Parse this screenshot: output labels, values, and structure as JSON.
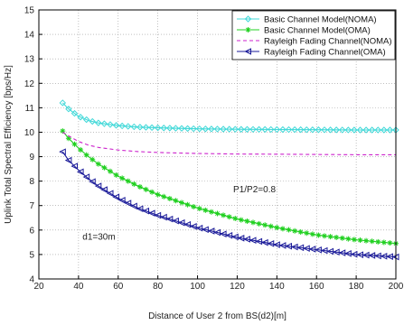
{
  "chart_data": {
    "type": "line",
    "xlabel": "Distance of User 2 from BS(d2)[m]",
    "ylabel": "Uplink Total Spectral Efficiency [bps/Hz]",
    "xlim": [
      20,
      200
    ],
    "ylim": [
      4,
      15
    ],
    "xticks": [
      20,
      40,
      60,
      80,
      100,
      120,
      140,
      160,
      180,
      200
    ],
    "yticks": [
      4,
      5,
      6,
      7,
      8,
      9,
      10,
      11,
      12,
      13,
      14,
      15
    ],
    "grid": true,
    "legend_position": "top-right",
    "annotations": [
      "P1/P2=0.8",
      "d1=30m"
    ],
    "series": [
      {
        "name": "Basic Channel Model(NOMA)",
        "color": "#40d8d8",
        "line_style": "solid",
        "marker": "diamond",
        "x": [
          32,
          35,
          40,
          45,
          50,
          60,
          70,
          80,
          100,
          120,
          140,
          160,
          180,
          200
        ],
        "y": [
          11.2,
          10.95,
          10.65,
          10.48,
          10.38,
          10.27,
          10.21,
          10.18,
          10.14,
          10.12,
          10.11,
          10.1,
          10.09,
          10.09
        ]
      },
      {
        "name": "Basic Channel Model(OMA)",
        "color": "#20d020",
        "line_style": "solid",
        "marker": "star",
        "x": [
          32,
          35,
          40,
          45,
          50,
          60,
          70,
          80,
          100,
          120,
          140,
          160,
          180,
          200
        ],
        "y": [
          10.05,
          9.75,
          9.35,
          9.0,
          8.7,
          8.2,
          7.8,
          7.45,
          6.9,
          6.45,
          6.1,
          5.8,
          5.6,
          5.45
        ]
      },
      {
        "name": "Rayleigh Fading Channel(NOMA)",
        "color": "#cc22cc",
        "line_style": "dashed",
        "marker": "none",
        "x": [
          32,
          35,
          40,
          45,
          50,
          60,
          70,
          80,
          100,
          120,
          140,
          160,
          180,
          200
        ],
        "y": [
          10.0,
          9.85,
          9.62,
          9.47,
          9.38,
          9.27,
          9.21,
          9.17,
          9.13,
          9.11,
          9.1,
          9.09,
          9.08,
          9.08
        ]
      },
      {
        "name": "Rayleigh Fading Channel(OMA)",
        "color": "#1a1a99",
        "line_style": "solid",
        "marker": "triangle-left",
        "x": [
          32,
          35,
          40,
          45,
          50,
          60,
          70,
          80,
          100,
          120,
          140,
          160,
          180,
          200
        ],
        "y": [
          9.2,
          8.85,
          8.45,
          8.1,
          7.8,
          7.3,
          6.9,
          6.6,
          6.1,
          5.7,
          5.4,
          5.2,
          5.0,
          4.9
        ]
      }
    ]
  }
}
